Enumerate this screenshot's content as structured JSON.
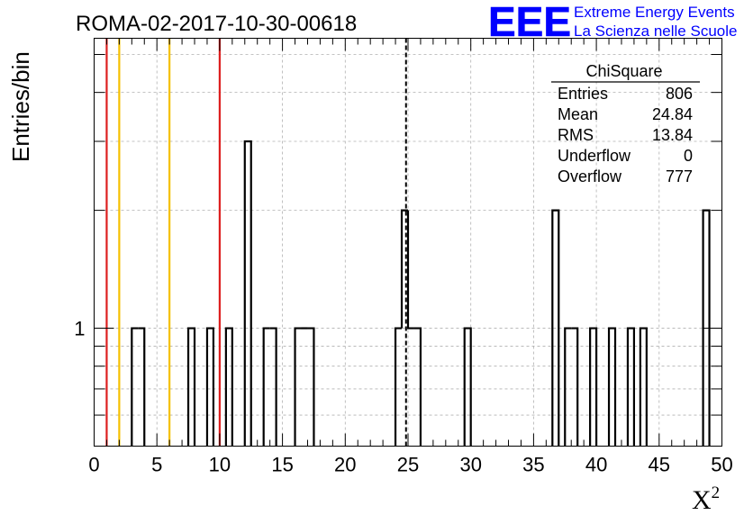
{
  "title": "ROMA-02-2017-10-30-00618",
  "logo": {
    "mark": "EEE",
    "line1": "Extreme Energy Events",
    "line2": "La Scienza nelle Scuole",
    "color": "#0000ff"
  },
  "stats_box": {
    "name": "ChiSquare",
    "rows": [
      {
        "label": "Entries",
        "value": "806"
      },
      {
        "label": "Mean",
        "value": "24.84"
      },
      {
        "label": "RMS",
        "value": "13.84"
      },
      {
        "label": "Underflow",
        "value": "0"
      },
      {
        "label": "Overflow",
        "value": "777"
      }
    ]
  },
  "chart_data": {
    "type": "bar",
    "histogram": "step",
    "ylabel": "Entries/bin",
    "xlabel_base": "X",
    "xlabel_sup": "2",
    "xlim": [
      0,
      50
    ],
    "ylim": [
      0.5,
      5.5
    ],
    "yscale": "log",
    "grid": true,
    "x_ticks": [
      0,
      5,
      10,
      15,
      20,
      25,
      30,
      35,
      40,
      45,
      50
    ],
    "x_tick_labels": [
      "0",
      "5",
      "10",
      "15",
      "20",
      "25",
      "30",
      "35",
      "40",
      "45",
      "50"
    ],
    "y_tick_labels": [
      {
        "value": 1,
        "label": "1"
      }
    ],
    "bin_width": 0.5,
    "bins": [
      {
        "x": 3.0,
        "count": 1
      },
      {
        "x": 3.5,
        "count": 1
      },
      {
        "x": 7.5,
        "count": 1
      },
      {
        "x": 9.0,
        "count": 1
      },
      {
        "x": 10.5,
        "count": 1
      },
      {
        "x": 12.0,
        "count": 3
      },
      {
        "x": 13.5,
        "count": 1
      },
      {
        "x": 14.0,
        "count": 1
      },
      {
        "x": 16.0,
        "count": 1
      },
      {
        "x": 16.5,
        "count": 1
      },
      {
        "x": 17.0,
        "count": 1
      },
      {
        "x": 24.0,
        "count": 1
      },
      {
        "x": 24.5,
        "count": 2
      },
      {
        "x": 25.0,
        "count": 1
      },
      {
        "x": 25.5,
        "count": 1
      },
      {
        "x": 29.5,
        "count": 1
      },
      {
        "x": 36.5,
        "count": 2
      },
      {
        "x": 37.5,
        "count": 1
      },
      {
        "x": 38.0,
        "count": 1
      },
      {
        "x": 39.5,
        "count": 1
      },
      {
        "x": 41.0,
        "count": 1
      },
      {
        "x": 42.5,
        "count": 1
      },
      {
        "x": 43.5,
        "count": 1
      },
      {
        "x": 48.5,
        "count": 2
      }
    ],
    "vertical_lines": [
      {
        "x": 1,
        "color": "#dd1f1f",
        "style": "solid"
      },
      {
        "x": 2,
        "color": "#f5c000",
        "style": "solid"
      },
      {
        "x": 6,
        "color": "#f5c000",
        "style": "solid"
      },
      {
        "x": 10,
        "color": "#dd1f1f",
        "style": "solid"
      },
      {
        "x": 24.84,
        "color": "#000000",
        "style": "dashed"
      }
    ]
  }
}
